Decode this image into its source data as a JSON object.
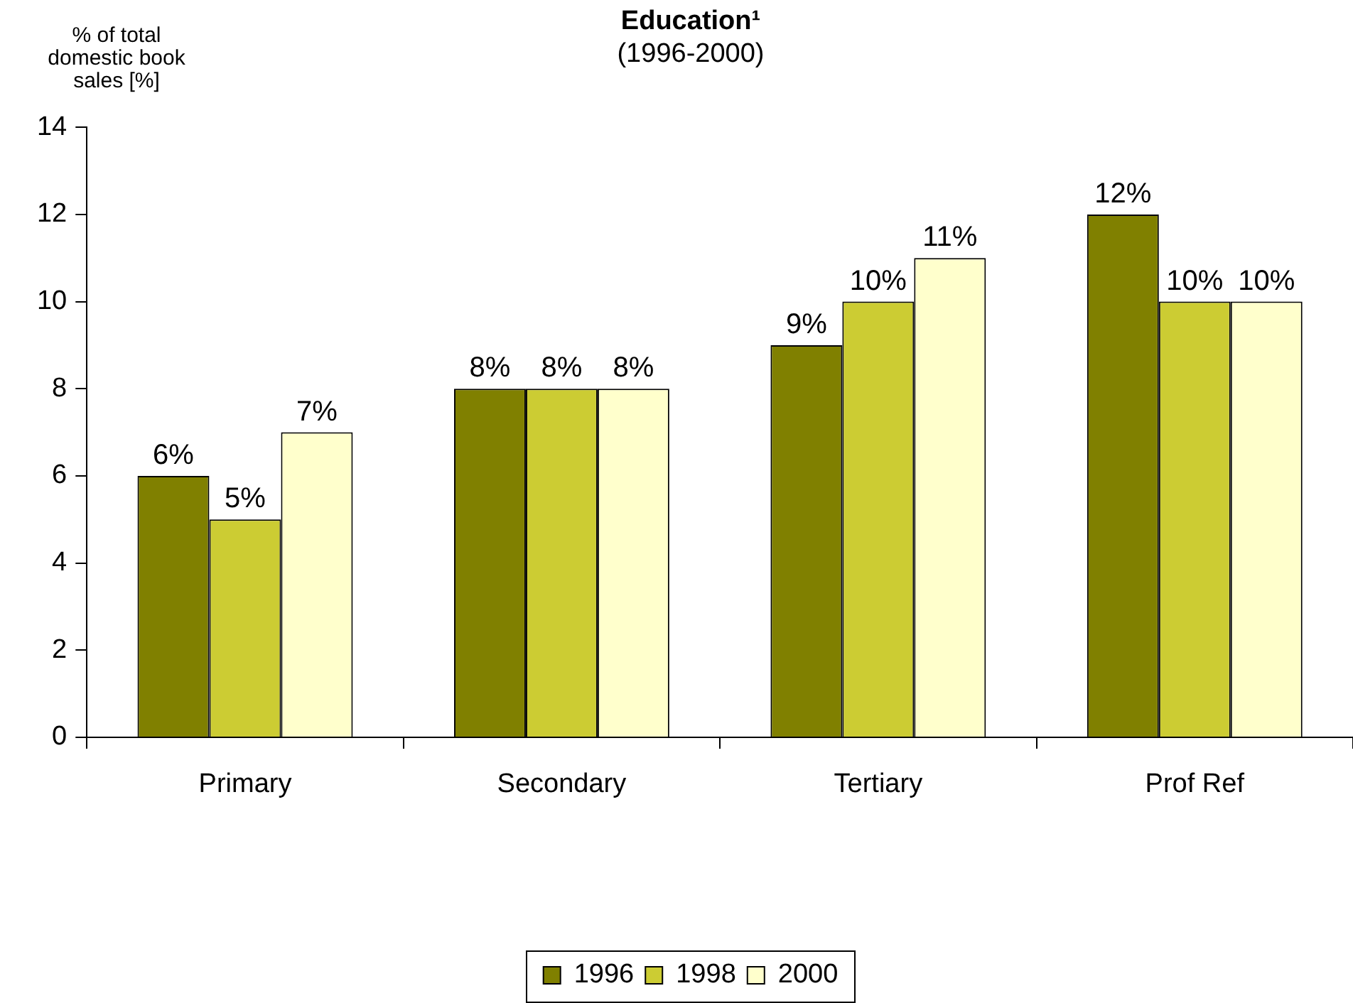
{
  "chart_data": {
    "type": "bar",
    "title": "Education¹",
    "subtitle": "(1996-2000)",
    "ylabel": "% of total domestic book sales [%]",
    "categories": [
      "Primary",
      "Secondary",
      "Tertiary",
      "Prof Ref"
    ],
    "series": [
      {
        "name": "1996",
        "color": "#808000",
        "values": [
          6,
          8,
          9,
          12
        ],
        "value_labels": [
          "6%",
          "8%",
          "9%",
          "12%"
        ]
      },
      {
        "name": "1998",
        "color": "#cccc33",
        "values": [
          5,
          8,
          10,
          10
        ],
        "value_labels": [
          "5%",
          "8%",
          "10%",
          "10%"
        ]
      },
      {
        "name": "2000",
        "color": "#ffffcc",
        "values": [
          7,
          8,
          11,
          10
        ],
        "value_labels": [
          "7%",
          "8%",
          "11%",
          "10%"
        ]
      }
    ],
    "ylim": [
      0,
      14
    ],
    "yticks": [
      0,
      2,
      4,
      6,
      8,
      10,
      12,
      14
    ],
    "grid": false,
    "legend": "bottom"
  }
}
